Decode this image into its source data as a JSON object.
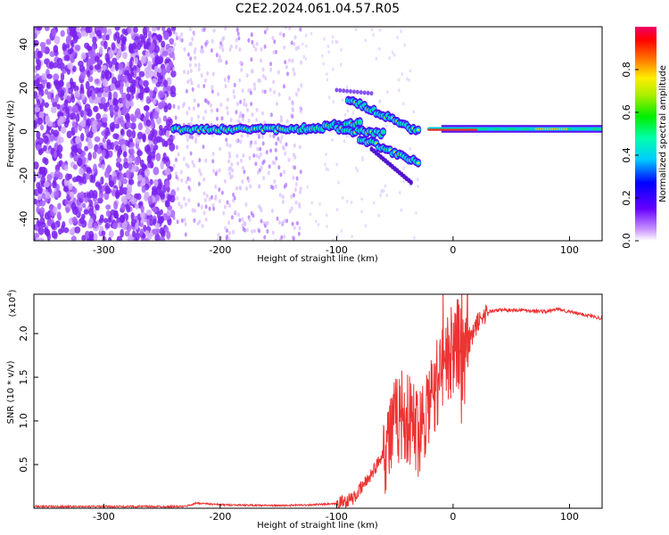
{
  "title": "C2E2.2024.061.04.57.R05",
  "chart_data": [
    {
      "type": "heatmap",
      "xlabel": "Height of straight line (km)",
      "ylabel": "Frequency (Hz)",
      "xlim": [
        -360,
        128
      ],
      "ylim": [
        -50,
        48
      ],
      "xticks": [
        -300,
        -200,
        -100,
        0,
        100
      ],
      "yticks": [
        -40,
        -20,
        0,
        20,
        40
      ],
      "colorbar": {
        "label": "Normalized spectral amplitude",
        "range": [
          0,
          1
        ],
        "ticks": [
          0.0,
          0.2,
          0.4,
          0.6,
          0.8
        ]
      },
      "regions": [
        {
          "x": [
            -360,
            -240
          ],
          "description": "dense noise"
        },
        {
          "x": [
            -240,
            -130
          ],
          "description": "sparse noise"
        },
        {
          "x": [
            -240,
            -10
          ],
          "description": "signal near 0 Hz with divergent branches from -100 to -30"
        },
        {
          "x": [
            -10,
            128
          ],
          "description": "steady signal near 0-2 Hz"
        }
      ]
    },
    {
      "type": "line",
      "xlabel": "Height of straight line (km)",
      "ylabel": "SNR (10 * v/v)",
      "ymultiplier": "(x10",
      "ymultiplier_exp": "4",
      "ymultiplier_close": ")",
      "xlim": [
        -360,
        128
      ],
      "ylim": [
        0,
        2.45
      ],
      "xticks": [
        -300,
        -200,
        -100,
        0,
        100
      ],
      "yticks": [
        0.5,
        1.0,
        1.5,
        2.0
      ],
      "color": "#ee3333",
      "series": [
        {
          "x": [
            -360,
            -300,
            -230,
            -220,
            -200,
            -150,
            -120,
            -100,
            -85,
            -75,
            -65,
            -55,
            -45,
            -38,
            -30,
            -22,
            -15,
            -10,
            -5,
            0,
            5,
            10,
            15,
            20,
            25,
            30,
            40,
            60,
            80,
            90,
            100,
            110,
            120,
            128
          ],
          "y": [
            0.02,
            0.02,
            0.02,
            0.06,
            0.04,
            0.03,
            0.04,
            0.05,
            0.12,
            0.3,
            0.5,
            0.8,
            1.1,
            1.0,
            0.9,
            1.2,
            1.4,
            1.6,
            1.7,
            1.8,
            1.9,
            1.6,
            1.9,
            2.1,
            2.2,
            2.25,
            2.27,
            2.27,
            2.25,
            2.28,
            2.25,
            2.22,
            2.2,
            2.17
          ]
        }
      ]
    }
  ]
}
